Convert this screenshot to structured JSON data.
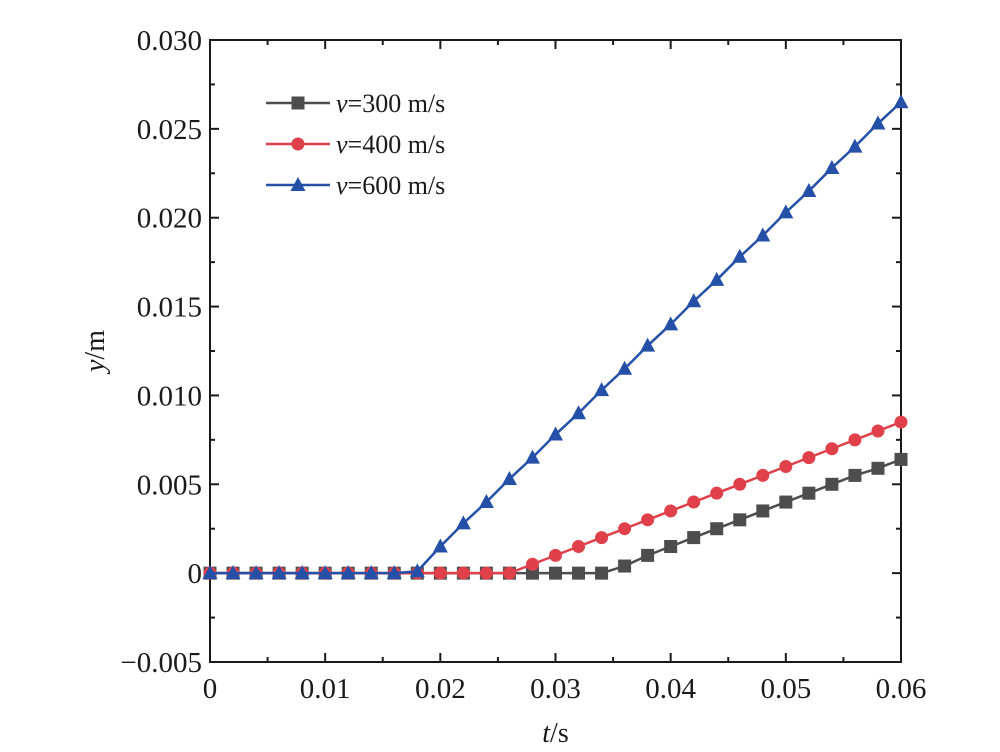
{
  "chart_data": {
    "type": "line",
    "title": "",
    "xlabel": {
      "var": "t",
      "unit": "/s"
    },
    "ylabel": {
      "var": "y",
      "unit": "/m"
    },
    "xlim": [
      0,
      0.06
    ],
    "ylim": [
      -0.005,
      0.03
    ],
    "xticks": [
      0,
      0.01,
      0.02,
      0.03,
      0.04,
      0.05,
      0.06
    ],
    "xtick_labels": [
      "0",
      "0.01",
      "0.02",
      "0.03",
      "0.04",
      "0.05",
      "0.06"
    ],
    "yticks": [
      -0.005,
      0,
      0.005,
      0.01,
      0.015,
      0.02,
      0.025,
      0.03
    ],
    "ytick_labels": [
      "−0.005",
      "0",
      "0.005",
      "0.010",
      "0.015",
      "0.020",
      "0.025",
      "0.030"
    ],
    "grid": false,
    "legend_position": "top-left",
    "x": [
      0,
      0.002,
      0.004,
      0.006,
      0.008,
      0.01,
      0.012,
      0.014,
      0.016,
      0.018,
      0.02,
      0.022,
      0.024,
      0.026,
      0.028,
      0.03,
      0.032,
      0.034,
      0.036,
      0.038,
      0.04,
      0.042,
      0.044,
      0.046,
      0.048,
      0.05,
      0.052,
      0.054,
      0.056,
      0.058,
      0.06
    ],
    "series": [
      {
        "name": "v=300 m/s",
        "legend_var": "v",
        "legend_rest": "=300 m/s",
        "color": "#4d4d4d",
        "marker": "square",
        "values": [
          0,
          0,
          0,
          0,
          0,
          0,
          0,
          0,
          0,
          0,
          0,
          0,
          0,
          0,
          0,
          0,
          0,
          0,
          0.0004,
          0.001,
          0.0015,
          0.002,
          0.0025,
          0.003,
          0.0035,
          0.004,
          0.0045,
          0.005,
          0.0055,
          0.0059,
          0.0064
        ]
      },
      {
        "name": "v=400 m/s",
        "legend_var": "v",
        "legend_rest": "=400 m/s",
        "color": "#e0404a",
        "marker": "circle",
        "values": [
          0,
          0,
          0,
          0,
          0,
          0,
          0,
          0,
          0,
          0,
          0,
          0,
          0,
          0,
          0.0005,
          0.001,
          0.0015,
          0.002,
          0.0025,
          0.003,
          0.0035,
          0.004,
          0.0045,
          0.005,
          0.0055,
          0.006,
          0.0065,
          0.007,
          0.0075,
          0.008,
          0.0085
        ]
      },
      {
        "name": "v=600 m/s",
        "legend_var": "v",
        "legend_rest": "=600 m/s",
        "color": "#2450a8",
        "marker": "triangle",
        "values": [
          0,
          0,
          0,
          0,
          0,
          0,
          0,
          0,
          0,
          0.0001,
          0.0015,
          0.0028,
          0.004,
          0.0053,
          0.0065,
          0.0078,
          0.009,
          0.0103,
          0.0115,
          0.0128,
          0.014,
          0.0153,
          0.0165,
          0.0178,
          0.019,
          0.0203,
          0.0215,
          0.0228,
          0.024,
          0.0253,
          0.0265
        ]
      }
    ]
  }
}
